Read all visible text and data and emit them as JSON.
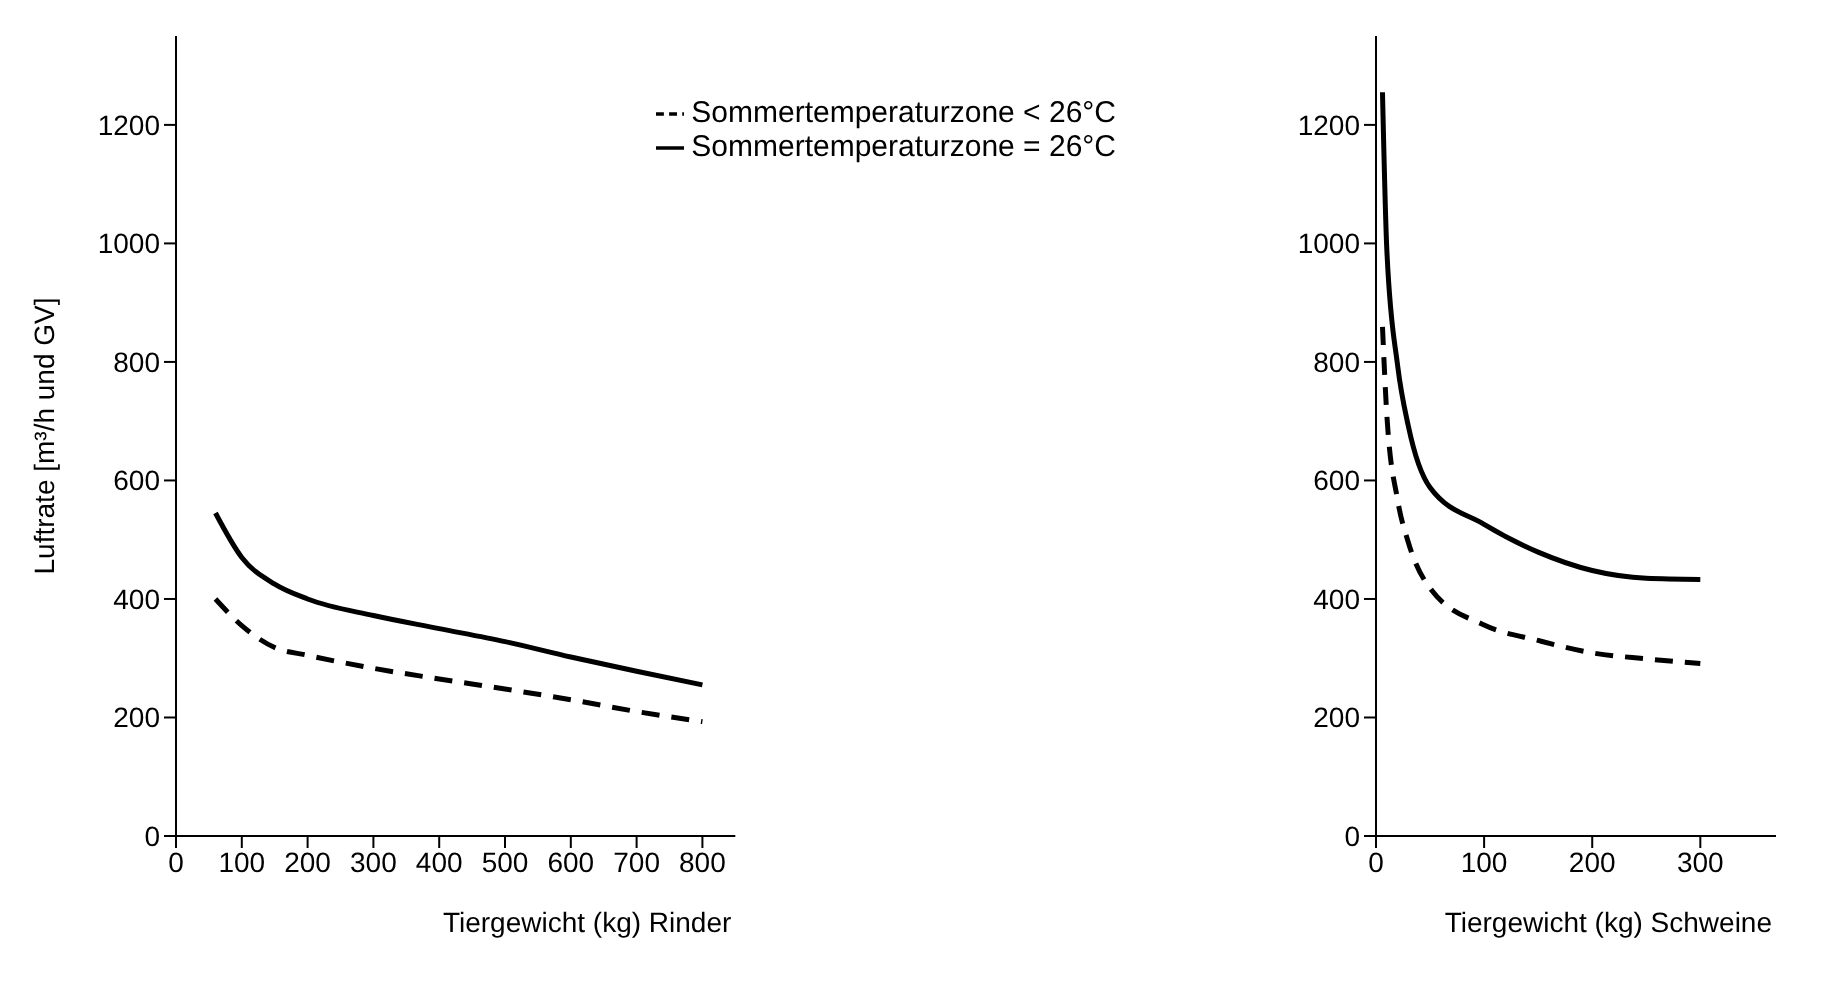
{
  "chart_data": [
    {
      "type": "line",
      "xlabel": "Tiergewicht (kg) Rinder",
      "ylabel": "Luftrate [m³/h und GV]",
      "xlim": [
        0,
        850
      ],
      "xticks": [
        0,
        100,
        200,
        300,
        400,
        500,
        600,
        700,
        800
      ],
      "ylim": [
        0,
        1350
      ],
      "yticks": [
        0,
        200,
        400,
        600,
        800,
        1000,
        1200
      ],
      "grid": false,
      "legend": "top right",
      "marker": "none",
      "series": [
        {
          "name": "Sommertemperaturzone = 26°C",
          "color": "#000000",
          "line_style": "solid",
          "x": [
            60,
            100,
            150,
            200,
            300,
            400,
            500,
            600,
            700,
            800
          ],
          "values": [
            545,
            470,
            425,
            400,
            372,
            350,
            328,
            302,
            278,
            255
          ]
        },
        {
          "name": "Sommertemperaturzone < 26°C",
          "color": "#000000",
          "line_style": "dashed",
          "x": [
            60,
            100,
            150,
            200,
            300,
            400,
            500,
            600,
            700,
            800
          ],
          "values": [
            400,
            355,
            318,
            305,
            283,
            265,
            248,
            230,
            210,
            193
          ]
        }
      ]
    },
    {
      "type": "line",
      "xlabel": "Tiergewicht (kg) Schweine",
      "xlim": [
        0,
        370
      ],
      "xticks": [
        0,
        100,
        200,
        300
      ],
      "ylim": [
        0,
        1350
      ],
      "yticks": [
        0,
        200,
        400,
        600,
        800,
        1000,
        1200
      ],
      "grid": false,
      "legend": false,
      "marker": "none",
      "series": [
        {
          "color": "#000000",
          "line_style": "solid",
          "x": [
            6,
            10,
            20,
            30,
            50,
            100,
            150,
            200,
            250,
            300
          ],
          "values": [
            1255,
            990,
            794,
            691,
            588,
            526,
            479,
            448,
            435,
            433
          ]
        },
        {
          "color": "#000000",
          "line_style": "dashed",
          "x": [
            6,
            10,
            20,
            30,
            50,
            100,
            150,
            200,
            250,
            300
          ],
          "values": [
            859,
            711,
            567,
            495,
            418,
            356,
            330,
            309,
            299,
            291
          ]
        }
      ]
    }
  ]
}
